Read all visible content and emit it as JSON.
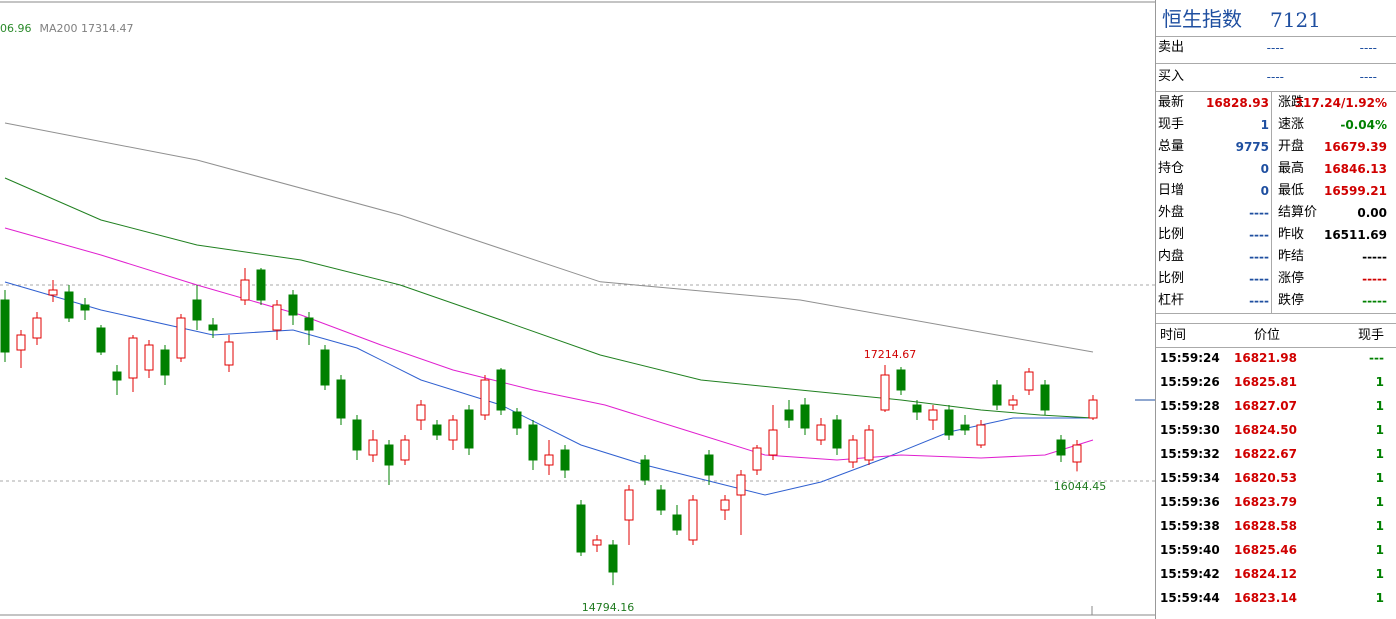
{
  "chart_data": {
    "type": "candlestick",
    "legend": [
      {
        "text": "06.96",
        "color": "#2a8a2a"
      },
      {
        "text": "MA200 17314.47",
        "color": "#808080"
      }
    ],
    "annotations": [
      {
        "text": "17214.67",
        "color": "#d00000"
      },
      {
        "text": "14794.16",
        "color": "#1f7a1f"
      },
      {
        "text": "16044.45",
        "color": "#1f7a1f"
      }
    ],
    "ylim": [
      14465,
      20812
    ],
    "up_color": "#e00000",
    "down_color": "#008000",
    "open": [
      17930,
      17380,
      17512,
      17985,
      18018,
      17875,
      17622,
      17138,
      17072,
      17160,
      17380,
      17292,
      17930,
      17655,
      17215,
      17930,
      18260,
      17600,
      17985,
      17732,
      17380,
      17050,
      16610,
      16225,
      16335,
      16170,
      16610,
      16555,
      16390,
      16720,
      16665,
      17160,
      16698,
      16555,
      16115,
      16280,
      15675,
      15235,
      15235,
      15510,
      16170,
      15840,
      15565,
      15290,
      16225,
      15620,
      15785,
      16060,
      16225,
      16720,
      16775,
      16390,
      16610,
      16148,
      16170,
      16720,
      17160,
      16775,
      16610,
      16720,
      16555,
      16335,
      16995,
      16775,
      16940,
      16995,
      16390,
      16148,
      16632
    ],
    "close": [
      17358,
      17545,
      17732,
      18040,
      17732,
      17820,
      17358,
      17050,
      17512,
      17435,
      17105,
      17732,
      17710,
      17600,
      17468,
      18150,
      17930,
      17875,
      17765,
      17600,
      16995,
      16632,
      16280,
      16390,
      16115,
      16390,
      16775,
      16445,
      16610,
      16302,
      17050,
      16720,
      16522,
      16170,
      16225,
      16060,
      15158,
      15290,
      14938,
      15840,
      15950,
      15620,
      15400,
      15730,
      16005,
      15730,
      16005,
      16302,
      16500,
      16610,
      16522,
      16555,
      16302,
      16390,
      16500,
      17105,
      16940,
      16698,
      16720,
      16445,
      16500,
      16555,
      16775,
      16830,
      17138,
      16720,
      16225,
      16335,
      16830
    ],
    "high": [
      18040,
      17600,
      17798,
      18150,
      18095,
      17952,
      17655,
      17215,
      17545,
      17490,
      17435,
      17776,
      18095,
      17732,
      17545,
      18282,
      18282,
      17930,
      18040,
      17798,
      17435,
      17105,
      16665,
      16500,
      16390,
      16445,
      16830,
      16610,
      16665,
      16775,
      17105,
      17182,
      16742,
      16610,
      16390,
      16335,
      15730,
      15345,
      15290,
      15895,
      16225,
      15895,
      15675,
      15785,
      16280,
      15785,
      16060,
      16335,
      16775,
      16830,
      16852,
      16632,
      16665,
      16445,
      16555,
      17214.67,
      17193,
      16830,
      16775,
      16775,
      16665,
      16610,
      17050,
      16885,
      17182,
      17050,
      16445,
      16390,
      16885
    ],
    "low": [
      17248,
      17182,
      17435,
      17908,
      17688,
      17710,
      17325,
      16885,
      16918,
      17072,
      16995,
      17248,
      17600,
      17512,
      17138,
      17875,
      17875,
      17490,
      17655,
      17435,
      16940,
      16555,
      16170,
      16148,
      15895,
      16115,
      16500,
      16390,
      16280,
      16225,
      16610,
      16665,
      16445,
      16060,
      16005,
      15972,
      15114,
      15158,
      14794.16,
      15235,
      15895,
      15565,
      15345,
      15235,
      15895,
      15510,
      15345,
      16005,
      16170,
      16522,
      16445,
      16335,
      16225,
      16082,
      16115,
      16698,
      16885,
      16610,
      16500,
      16390,
      16445,
      16302,
      16720,
      16720,
      16885,
      16665,
      16148,
      16044.45,
      16610
    ],
    "series": [
      {
        "color": "#3060d0",
        "x": [
          0,
          6,
          13,
          18,
          22,
          26,
          31,
          36,
          40,
          45,
          47.5,
          51,
          55,
          59,
          63,
          68
        ],
        "values": [
          18128,
          17820,
          17545,
          17600,
          17402,
          17050,
          16775,
          16335,
          16115,
          15895,
          15785,
          15928,
          16192,
          16478,
          16632,
          16632
        ]
      },
      {
        "color": "#e020d0",
        "x": [
          0,
          6,
          12,
          18.5,
          23.5,
          28,
          33,
          37.5,
          42.5,
          47.5,
          52,
          56,
          61,
          65,
          68
        ],
        "values": [
          18722,
          18425,
          18095,
          17765,
          17435,
          17160,
          16940,
          16775,
          16500,
          16225,
          16170,
          16225,
          16192,
          16225,
          16390
        ]
      },
      {
        "color": "#208020",
        "x": [
          0,
          6,
          12,
          18.5,
          24.7,
          31,
          37.2,
          43.5,
          49.7,
          56,
          61,
          64.7,
          68
        ],
        "values": [
          19272,
          18810,
          18535,
          18370,
          18095,
          17710,
          17325,
          17050,
          16940,
          16830,
          16720,
          16665,
          16632
        ]
      },
      {
        "color": "#909090",
        "x": [
          0,
          12,
          24.7,
          37.2,
          49.7,
          62,
          68
        ],
        "values": [
          19877,
          19470,
          18865,
          18130,
          17930,
          17545,
          17358
        ]
      }
    ]
  },
  "quote_panel": {
    "title": "恒生指数",
    "code": "7121",
    "orders": [
      {
        "label": "卖出",
        "price": "----",
        "volume": "----"
      },
      {
        "label": "买入",
        "price": "----",
        "volume": "----"
      }
    ],
    "left": [
      {
        "label": "最新",
        "value": "16828.93",
        "color": "#d00000"
      },
      {
        "label": "现手",
        "value": "1",
        "color": "#1f4fa0"
      },
      {
        "label": "总量",
        "value": "9775",
        "color": "#1f4fa0"
      },
      {
        "label": "持仓",
        "value": "0",
        "color": "#1f4fa0"
      },
      {
        "label": "日增",
        "value": "0",
        "color": "#1f4fa0"
      },
      {
        "label": "外盘",
        "value": "----",
        "color": "#1f4fa0"
      },
      {
        "label": "比例",
        "value": "----",
        "color": "#1f4fa0"
      },
      {
        "label": "内盘",
        "value": "----",
        "color": "#1f4fa0"
      },
      {
        "label": "比例",
        "value": "----",
        "color": "#1f4fa0"
      },
      {
        "label": "杠杆",
        "value": "----",
        "color": "#1f4fa0"
      }
    ],
    "right": [
      {
        "label": "涨跌",
        "value": "317.24/1.92%",
        "color": "#d00000"
      },
      {
        "label": "速涨",
        "value": "-0.04%",
        "color": "#008000"
      },
      {
        "label": "开盘",
        "value": "16679.39",
        "color": "#d00000"
      },
      {
        "label": "最高",
        "value": "16846.13",
        "color": "#d00000"
      },
      {
        "label": "最低",
        "value": "16599.21",
        "color": "#d00000"
      },
      {
        "label": "结算价",
        "value": "0.00",
        "color": "#000000"
      },
      {
        "label": "昨收",
        "value": "16511.69",
        "color": "#000000"
      },
      {
        "label": "昨结",
        "value": "-----",
        "color": "#000000"
      },
      {
        "label": "涨停",
        "value": "-----",
        "color": "#d00000"
      },
      {
        "label": "跌停",
        "value": "-----",
        "color": "#008000"
      }
    ],
    "ticks_header": [
      "时间",
      "价位",
      "现手"
    ],
    "ticks": [
      [
        "15:59:24",
        "16821.98",
        "---"
      ],
      [
        "15:59:26",
        "16825.81",
        "1"
      ],
      [
        "15:59:28",
        "16827.07",
        "1"
      ],
      [
        "15:59:30",
        "16824.50",
        "1"
      ],
      [
        "15:59:32",
        "16822.67",
        "1"
      ],
      [
        "15:59:34",
        "16820.53",
        "1"
      ],
      [
        "15:59:36",
        "16823.79",
        "1"
      ],
      [
        "15:59:38",
        "16828.58",
        "1"
      ],
      [
        "15:59:40",
        "16825.46",
        "1"
      ],
      [
        "15:59:42",
        "16824.12",
        "1"
      ],
      [
        "15:59:44",
        "16823.14",
        "1"
      ]
    ]
  }
}
